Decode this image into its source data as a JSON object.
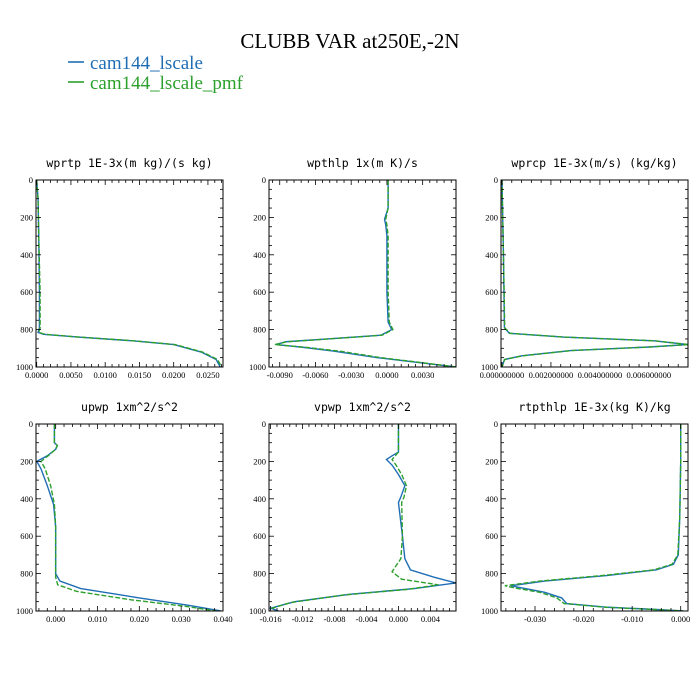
{
  "title": "CLUBB VAR at250E,-2N",
  "legend": [
    {
      "label": "cam144_lscale",
      "color": "#1f6eb5",
      "dash": false
    },
    {
      "label": "cam144_lscale_pmf",
      "color": "#2ca02c",
      "dash": true
    }
  ],
  "chart_data": [
    {
      "type": "line",
      "title": "wprtp  1E-3x(m kg)/(s kg)",
      "xlim": [
        -0.0001,
        0.0272
      ],
      "ylim": [
        0,
        1000
      ],
      "y_inverted": true,
      "xticks": [
        "0.0000",
        "0.0050",
        "0.0100",
        "0.0150",
        "0.0200",
        "0.0250"
      ],
      "xtick_values": [
        0,
        0.005,
        0.01,
        0.015,
        0.02,
        0.025
      ],
      "yticks": [
        "0",
        "200",
        "400",
        "600",
        "800",
        "1000"
      ],
      "yticks_values": [
        0,
        200,
        400,
        600,
        800,
        1000
      ],
      "series": [
        {
          "name": "cam144_lscale",
          "points": [
            [
              0.0,
              0
            ],
            [
              0.0002,
              100
            ],
            [
              0.0003,
              300
            ],
            [
              0.0004,
              600
            ],
            [
              0.0004,
              790
            ],
            [
              0.0002,
              815
            ],
            [
              0.001,
              825
            ],
            [
              0.006,
              840
            ],
            [
              0.014,
              860
            ],
            [
              0.02,
              880
            ],
            [
              0.024,
              920
            ],
            [
              0.0262,
              960
            ],
            [
              0.0268,
              1000
            ]
          ]
        },
        {
          "name": "cam144_lscale_pmf",
          "points": [
            [
              0.0,
              0
            ],
            [
              0.0002,
              100
            ],
            [
              0.0003,
              300
            ],
            [
              0.0005,
              600
            ],
            [
              0.0005,
              790
            ],
            [
              0.0003,
              815
            ],
            [
              0.0012,
              825
            ],
            [
              0.0062,
              840
            ],
            [
              0.0142,
              860
            ],
            [
              0.0202,
              880
            ],
            [
              0.0242,
              920
            ],
            [
              0.0264,
              960
            ],
            [
              0.027,
              1000
            ]
          ]
        }
      ]
    },
    {
      "type": "line",
      "title": "wpthlp  1x(m K)/s",
      "xlim": [
        -0.0099,
        0.0058
      ],
      "ylim": [
        0,
        1000
      ],
      "y_inverted": true,
      "xticks": [
        "-0.0090",
        "-0.0060",
        "-0.0030",
        "0.0000",
        "0.0030"
      ],
      "xtick_values": [
        -0.009,
        -0.006,
        -0.003,
        0,
        0.003
      ],
      "yticks": [
        "0",
        "200",
        "400",
        "600",
        "800",
        "1000"
      ],
      "yticks_values": [
        0,
        200,
        400,
        600,
        800,
        1000
      ],
      "series": [
        {
          "name": "cam144_lscale",
          "points": [
            [
              0.0001,
              0
            ],
            [
              0.0001,
              150
            ],
            [
              -0.0002,
              210
            ],
            [
              -0.0001,
              240
            ],
            [
              0.0,
              300
            ],
            [
              0.0,
              600
            ],
            [
              0.0001,
              760
            ],
            [
              0.0004,
              800
            ],
            [
              -0.0005,
              830
            ],
            [
              -0.005,
              850
            ],
            [
              -0.0085,
              865
            ],
            [
              -0.0093,
              880
            ],
            [
              -0.007,
              895
            ],
            [
              -0.0045,
              915
            ],
            [
              -0.0008,
              950
            ],
            [
              0.0025,
              975
            ],
            [
              0.0058,
              1000
            ]
          ]
        },
        {
          "name": "cam144_lscale_pmf",
          "points": [
            [
              0.0001,
              0
            ],
            [
              0.0001,
              150
            ],
            [
              -0.0001,
              210
            ],
            [
              0.0,
              240
            ],
            [
              0.0001,
              300
            ],
            [
              0.0001,
              600
            ],
            [
              0.0002,
              760
            ],
            [
              0.0005,
              800
            ],
            [
              -0.0004,
              830
            ],
            [
              -0.0049,
              850
            ],
            [
              -0.0084,
              865
            ],
            [
              -0.0094,
              880
            ],
            [
              -0.0068,
              895
            ],
            [
              -0.004,
              915
            ],
            [
              -0.0005,
              950
            ],
            [
              0.0027,
              975
            ],
            [
              0.0058,
              1000
            ]
          ]
        }
      ]
    },
    {
      "type": "line",
      "title": "wprcp  1E-3x(m/s) (kg/kg)",
      "xlim": [
        -4e-05,
        0.0076
      ],
      "ylim": [
        0,
        1000
      ],
      "y_inverted": true,
      "xticks": [
        "0.000000000",
        "0.002000000",
        "0.004000000",
        "0.006000000"
      ],
      "xtick_values": [
        0,
        0.002,
        0.004,
        0.006
      ],
      "yticks": [
        "0",
        "200",
        "400",
        "600",
        "800",
        "1000"
      ],
      "yticks_values": [
        0,
        200,
        400,
        600,
        800,
        1000
      ],
      "series": [
        {
          "name": "cam144_lscale",
          "points": [
            [
              0.0,
              0
            ],
            [
              3e-05,
              200
            ],
            [
              6e-05,
              400
            ],
            [
              8e-05,
              600
            ],
            [
              0.0001,
              790
            ],
            [
              0.0003,
              820
            ],
            [
              0.0025,
              840
            ],
            [
              0.0062,
              860
            ],
            [
              0.0076,
              880
            ],
            [
              0.006,
              893
            ],
            [
              0.0028,
              912
            ],
            [
              0.0008,
              940
            ],
            [
              0.0001,
              960
            ],
            [
              0.0,
              1000
            ]
          ]
        },
        {
          "name": "cam144_lscale_pmf",
          "points": [
            [
              0.0,
              0
            ],
            [
              3e-05,
              200
            ],
            [
              6e-05,
              400
            ],
            [
              9e-05,
              600
            ],
            [
              0.00011,
              790
            ],
            [
              0.00033,
              820
            ],
            [
              0.00255,
              840
            ],
            [
              0.00625,
              860
            ],
            [
              0.00765,
              880
            ],
            [
              0.00605,
              893
            ],
            [
              0.00285,
              912
            ],
            [
              0.00085,
              940
            ],
            [
              0.00011,
              960
            ],
            [
              0.0,
              1000
            ]
          ]
        }
      ]
    },
    {
      "type": "line",
      "title": "upwp  1xm^2/s^2",
      "xlim": [
        -0.0047,
        0.04
      ],
      "ylim": [
        0,
        1000
      ],
      "y_inverted": true,
      "xticks": [
        "0.000",
        "0.010",
        "0.020",
        "0.030",
        "0.040"
      ],
      "xtick_values": [
        0,
        0.01,
        0.02,
        0.03,
        0.04
      ],
      "yticks": [
        "0",
        "200",
        "400",
        "600",
        "800",
        "1000"
      ],
      "yticks_values": [
        0,
        200,
        400,
        600,
        800,
        1000
      ],
      "series": [
        {
          "name": "cam144_lscale",
          "points": [
            [
              -0.0003,
              0
            ],
            [
              -0.0003,
              100
            ],
            [
              0.0004,
              115
            ],
            [
              0.0,
              135
            ],
            [
              -0.002,
              170
            ],
            [
              -0.0045,
              200
            ],
            [
              -0.0035,
              240
            ],
            [
              -0.002,
              330
            ],
            [
              -0.0005,
              430
            ],
            [
              0.0,
              550
            ],
            [
              0.0,
              700
            ],
            [
              0.0,
              800
            ],
            [
              0.001,
              840
            ],
            [
              0.006,
              880
            ],
            [
              0.02,
              930
            ],
            [
              0.032,
              970
            ],
            [
              0.0395,
              1000
            ]
          ]
        },
        {
          "name": "cam144_lscale_pmf",
          "points": [
            [
              -0.0003,
              0
            ],
            [
              -0.0003,
              100
            ],
            [
              0.0004,
              115
            ],
            [
              0.0,
              135
            ],
            [
              -0.0018,
              170
            ],
            [
              -0.0035,
              200
            ],
            [
              -0.0025,
              240
            ],
            [
              -0.0012,
              330
            ],
            [
              -0.0003,
              430
            ],
            [
              0.0,
              550
            ],
            [
              0.0,
              700
            ],
            [
              0.0,
              820
            ],
            [
              0.0005,
              860
            ],
            [
              0.005,
              895
            ],
            [
              0.018,
              940
            ],
            [
              0.031,
              975
            ],
            [
              0.0385,
              1000
            ]
          ]
        }
      ]
    },
    {
      "type": "line",
      "title": "vpwp  1xm^2/s^2",
      "xlim": [
        -0.0162,
        0.0072
      ],
      "ylim": [
        0,
        1000
      ],
      "y_inverted": true,
      "xticks": [
        "-0.016",
        "-0.012",
        "-0.008",
        "-0.004",
        "0.000",
        "0.004"
      ],
      "xtick_values": [
        -0.016,
        -0.012,
        -0.008,
        -0.004,
        0,
        0.004
      ],
      "yticks": [
        "0",
        "200",
        "400",
        "600",
        "800",
        "1000"
      ],
      "yticks_values": [
        0,
        200,
        400,
        600,
        800,
        1000
      ],
      "series": [
        {
          "name": "cam144_lscale",
          "points": [
            [
              0.0,
              0
            ],
            [
              0.0,
              150
            ],
            [
              -0.0008,
              170
            ],
            [
              -0.0015,
              190
            ],
            [
              -0.0008,
              220
            ],
            [
              0.0,
              270
            ],
            [
              0.0008,
              330
            ],
            [
              0.0003,
              390
            ],
            [
              0.0,
              420
            ],
            [
              0.0005,
              600
            ],
            [
              0.0008,
              720
            ],
            [
              0.0015,
              780
            ],
            [
              0.0045,
              820
            ],
            [
              0.0072,
              850
            ],
            [
              0.002,
              880
            ],
            [
              -0.006,
              910
            ],
            [
              -0.013,
              950
            ],
            [
              -0.016,
              985
            ],
            [
              -0.015,
              1000
            ]
          ]
        },
        {
          "name": "cam144_lscale_pmf",
          "points": [
            [
              0.0,
              0
            ],
            [
              0.0,
              150
            ],
            [
              -0.0004,
              170
            ],
            [
              -0.0008,
              190
            ],
            [
              -0.0003,
              220
            ],
            [
              0.0004,
              270
            ],
            [
              0.001,
              330
            ],
            [
              0.0007,
              390
            ],
            [
              0.0004,
              420
            ],
            [
              0.0005,
              600
            ],
            [
              0.0003,
              720
            ],
            [
              -0.0008,
              790
            ],
            [
              0.0004,
              830
            ],
            [
              0.005,
              860
            ],
            [
              0.001,
              885
            ],
            [
              -0.007,
              915
            ],
            [
              -0.0135,
              955
            ],
            [
              -0.0158,
              985
            ],
            [
              -0.0155,
              1000
            ]
          ]
        }
      ]
    },
    {
      "type": "line",
      "title": "rtpthlp  1E-3x(kg K)/kg",
      "xlim": [
        -0.037,
        0.0015
      ],
      "ylim": [
        0,
        1000
      ],
      "y_inverted": true,
      "xticks": [
        "-0.030",
        "-0.020",
        "-0.010",
        "0.000"
      ],
      "xtick_values": [
        -0.03,
        -0.02,
        -0.01,
        0
      ],
      "yticks": [
        "0",
        "200",
        "400",
        "600",
        "800",
        "1000"
      ],
      "yticks_values": [
        0,
        200,
        400,
        600,
        800,
        1000
      ],
      "series": [
        {
          "name": "cam144_lscale",
          "points": [
            [
              0.0,
              0
            ],
            [
              0.0,
              200
            ],
            [
              -0.0002,
              500
            ],
            [
              -0.0005,
              700
            ],
            [
              -0.0015,
              750
            ],
            [
              -0.005,
              780
            ],
            [
              -0.015,
              810
            ],
            [
              -0.028,
              840
            ],
            [
              -0.035,
              865
            ],
            [
              -0.032,
              880
            ],
            [
              -0.028,
              900
            ],
            [
              -0.0245,
              930
            ],
            [
              -0.0235,
              960
            ],
            [
              -0.015,
              980
            ],
            [
              -0.005,
              992
            ],
            [
              0.0005,
              1000
            ]
          ]
        },
        {
          "name": "cam144_lscale_pmf",
          "points": [
            [
              0.0,
              0
            ],
            [
              0.0,
              200
            ],
            [
              -0.0002,
              500
            ],
            [
              -0.0006,
              700
            ],
            [
              -0.0018,
              750
            ],
            [
              -0.0055,
              780
            ],
            [
              -0.016,
              810
            ],
            [
              -0.029,
              840
            ],
            [
              -0.0362,
              865
            ],
            [
              -0.0335,
              880
            ],
            [
              -0.029,
              900
            ],
            [
              -0.0255,
              930
            ],
            [
              -0.024,
              960
            ],
            [
              -0.0155,
              980
            ],
            [
              -0.0055,
              992
            ],
            [
              0.0005,
              1000
            ]
          ]
        }
      ]
    }
  ]
}
